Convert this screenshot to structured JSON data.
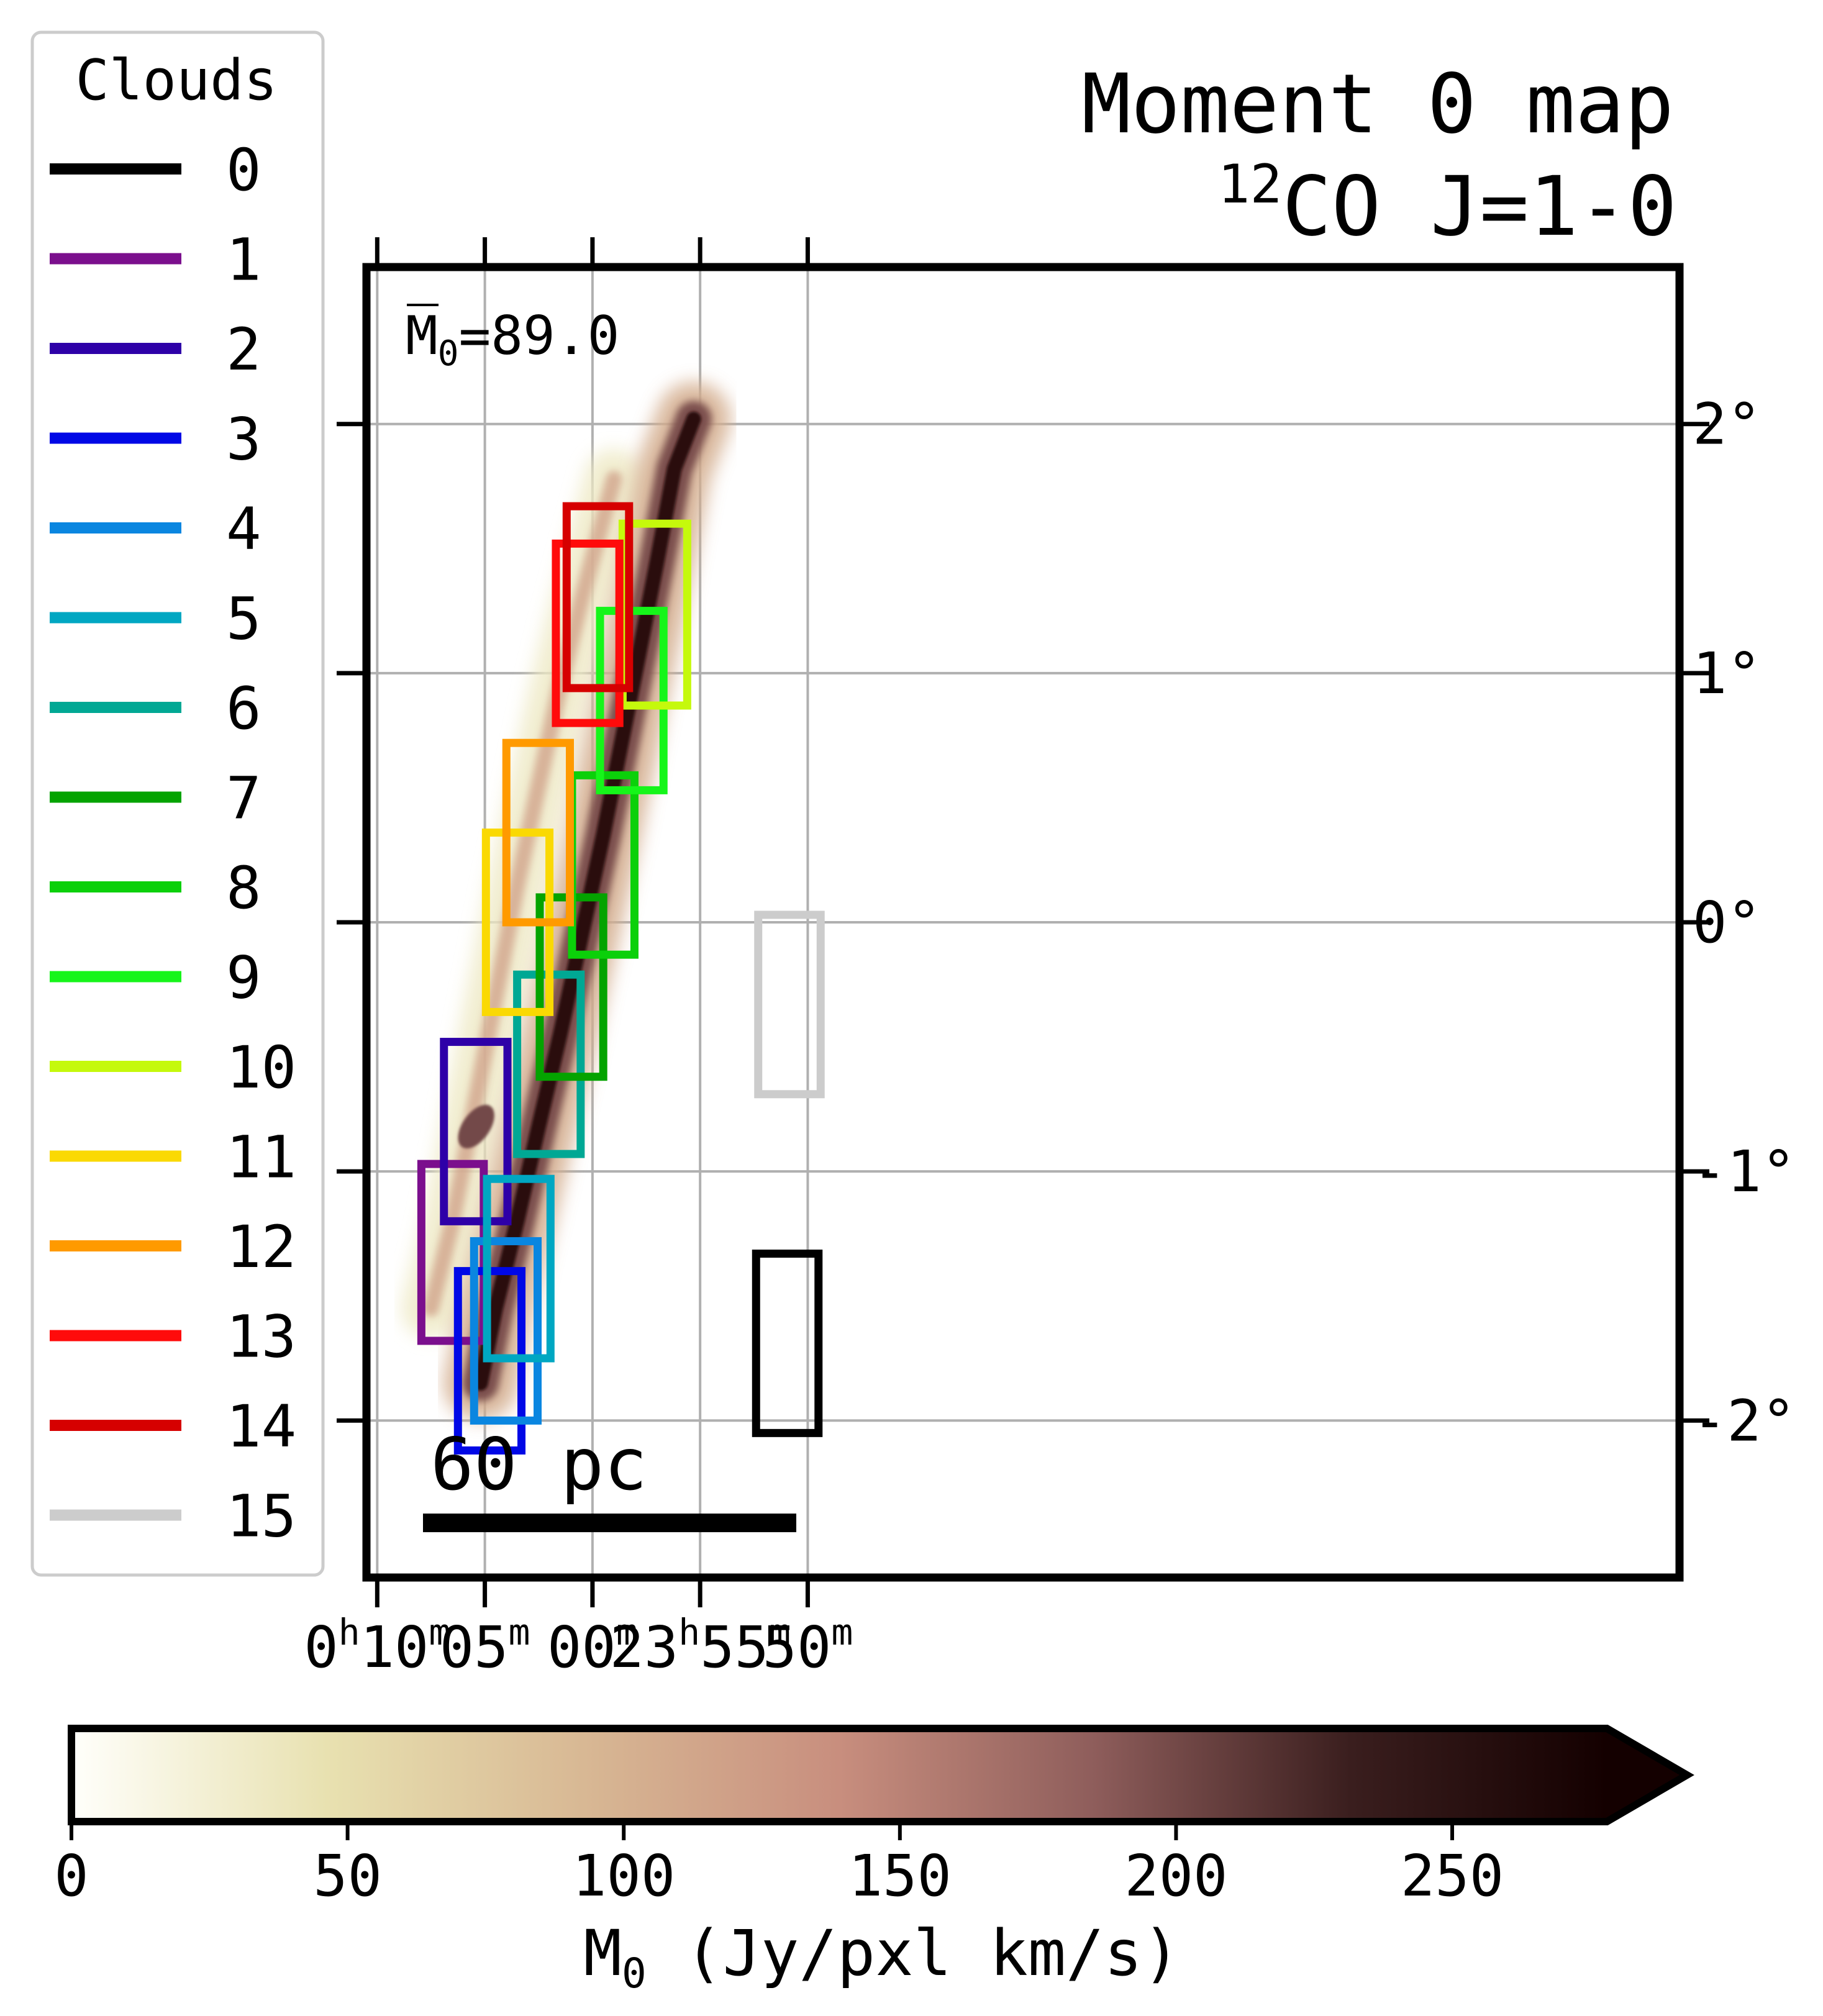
{
  "chart_data": {
    "type": "heatmap",
    "title": "Moment 0 map",
    "subtitle": {
      "sup": "12",
      "text": "CO J=1-0"
    },
    "annotation": {
      "symbol": "M",
      "sub": "0",
      "text": "=89.0"
    },
    "scalebar_label": "60 pc",
    "grid": true,
    "legend": {
      "title": "Clouds",
      "placement": "left, outside plot",
      "entries": [
        {
          "label": "0",
          "color": "#000000"
        },
        {
          "label": "1",
          "color": "#7b0f8d"
        },
        {
          "label": "2",
          "color": "#2e00a8"
        },
        {
          "label": "3",
          "color": "#0008e6"
        },
        {
          "label": "4",
          "color": "#0a86e0"
        },
        {
          "label": "5",
          "color": "#00a7c2"
        },
        {
          "label": "6",
          "color": "#00a894"
        },
        {
          "label": "7",
          "color": "#04a300"
        },
        {
          "label": "8",
          "color": "#0bd00a"
        },
        {
          "label": "9",
          "color": "#16f51a"
        },
        {
          "label": "10",
          "color": "#c5f90c"
        },
        {
          "label": "11",
          "color": "#fad903"
        },
        {
          "label": "12",
          "color": "#ff9a00"
        },
        {
          "label": "13",
          "color": "#ff0b0b"
        },
        {
          "label": "14",
          "color": "#d60000"
        },
        {
          "label": "15",
          "color": "#cccccc"
        }
      ]
    },
    "x_axis": {
      "units": "RA (minutes of time)",
      "lim": [
        10.5,
        -50.5
      ],
      "ticks": [
        {
          "value": 10,
          "h": "0",
          "m": "10"
        },
        {
          "value": 5,
          "h": "",
          "m": "05"
        },
        {
          "value": 0,
          "h": "",
          "m": "00"
        },
        {
          "value": -5,
          "h": "23",
          "m": "55"
        },
        {
          "value": -10,
          "h": "",
          "m": "50"
        }
      ],
      "tick_unit_h": "h",
      "tick_unit_m": "m"
    },
    "y_axis": {
      "units": "degrees",
      "lim": [
        -2.63,
        2.63
      ],
      "ticks": [
        {
          "value": 2,
          "label": "2°"
        },
        {
          "value": 1,
          "label": "1°"
        },
        {
          "value": 0,
          "label": "0°"
        },
        {
          "value": -1,
          "label": "-1°"
        },
        {
          "value": -2,
          "label": "-2°"
        }
      ]
    },
    "regions": [
      {
        "cloud": "0",
        "ra_min": [
          -7.6,
          -10.5
        ],
        "dec": [
          -2.05,
          -1.33
        ]
      },
      {
        "cloud": "1",
        "ra_min": [
          7.95,
          5.05
        ],
        "dec": [
          -1.68,
          -0.97
        ]
      },
      {
        "cloud": "2",
        "ra_min": [
          6.9,
          3.95
        ],
        "dec": [
          -1.2,
          -0.48
        ]
      },
      {
        "cloud": "3",
        "ra_min": [
          6.25,
          3.3
        ],
        "dec": [
          -2.12,
          -1.4
        ]
      },
      {
        "cloud": "4",
        "ra_min": [
          5.5,
          2.55
        ],
        "dec": [
          -2.0,
          -1.28
        ]
      },
      {
        "cloud": "5",
        "ra_min": [
          4.9,
          1.95
        ],
        "dec": [
          -1.75,
          -1.03
        ]
      },
      {
        "cloud": "6",
        "ra_min": [
          3.5,
          0.55
        ],
        "dec": [
          -0.93,
          -0.21
        ]
      },
      {
        "cloud": "7",
        "ra_min": [
          2.45,
          -0.5
        ],
        "dec": [
          -0.62,
          0.1
        ]
      },
      {
        "cloud": "8",
        "ra_min": [
          0.95,
          -1.95
        ],
        "dec": [
          -0.13,
          0.59
        ]
      },
      {
        "cloud": "9",
        "ra_min": [
          -0.35,
          -3.3
        ],
        "dec": [
          0.53,
          1.25
        ]
      },
      {
        "cloud": "10",
        "ra_min": [
          -1.4,
          -4.4
        ],
        "dec": [
          0.87,
          1.6
        ]
      },
      {
        "cloud": "11",
        "ra_min": [
          4.95,
          2.0
        ],
        "dec": [
          -0.36,
          0.36
        ]
      },
      {
        "cloud": "12",
        "ra_min": [
          4.0,
          1.05
        ],
        "dec": [
          0.0,
          0.72
        ]
      },
      {
        "cloud": "13",
        "ra_min": [
          1.7,
          -1.25
        ],
        "dec": [
          0.8,
          1.52
        ]
      },
      {
        "cloud": "14",
        "ra_min": [
          1.2,
          -1.7
        ],
        "dec": [
          0.94,
          1.67
        ]
      },
      {
        "cloud": "15",
        "ra_min": [
          -7.7,
          -10.6
        ],
        "dec": [
          -0.69,
          0.03
        ]
      }
    ],
    "emission": {
      "description_units": "M0 in Jy/pxl km/s along filaments",
      "main_filament": [
        [
          5.2,
          -1.85
        ],
        [
          4.5,
          -1.55
        ],
        [
          3.5,
          -1.2
        ],
        [
          2.5,
          -0.82
        ],
        [
          1.5,
          -0.45
        ],
        [
          0.5,
          -0.05
        ],
        [
          -0.5,
          0.35
        ],
        [
          -1.3,
          0.7
        ],
        [
          -2.1,
          1.05
        ],
        [
          -3.0,
          1.45
        ],
        [
          -3.8,
          1.82
        ],
        [
          -4.7,
          2.02
        ]
      ],
      "main_filament_m0": 230,
      "secondary_filament": [
        [
          7.5,
          -1.55
        ],
        [
          6.5,
          -1.2
        ],
        [
          5.5,
          -0.75
        ],
        [
          4.5,
          -0.3
        ],
        [
          3.5,
          0.15
        ],
        [
          2.5,
          0.55
        ],
        [
          1.5,
          0.95
        ],
        [
          0.5,
          1.3
        ],
        [
          -0.5,
          1.62
        ],
        [
          -1.0,
          1.78
        ]
      ],
      "secondary_filament_m0": 75,
      "knot": {
        "ra": 5.4,
        "dec": -0.82,
        "m0": 200
      }
    },
    "colorbar": {
      "label": {
        "symbol": "M",
        "sub": "0",
        "text": " (Jy/pxl km/s)"
      },
      "range": [
        0,
        278
      ],
      "extend": "max",
      "ticks": [
        "0",
        "50",
        "100",
        "150",
        "200",
        "250"
      ],
      "colors": [
        "#fffffb",
        "#e8e1b0",
        "#d8b894",
        "#c88e7e",
        "#8e5d5b",
        "#3a1e1e",
        "#140000"
      ]
    }
  }
}
